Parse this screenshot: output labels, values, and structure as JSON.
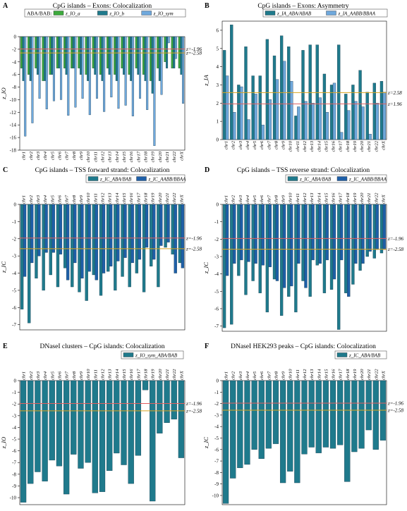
{
  "chromosomes": [
    "chr1",
    "chr2",
    "chr3",
    "chr4",
    "chr5",
    "chr6",
    "chr7",
    "chr8",
    "chr9",
    "chr10",
    "chr11",
    "chr12",
    "chr13",
    "chr14",
    "chr15",
    "chr16",
    "chr17",
    "chr18",
    "chr19",
    "chr20",
    "chr21",
    "chr22",
    "chrX"
  ],
  "colors": {
    "teal": "#1f7a8c",
    "darkblue": "#1e5fa8",
    "lightblue": "#6fa8dc",
    "green": "#3daa3d",
    "line_196": "#e06060",
    "line_258": "#d9a521"
  },
  "chart_data": [
    {
      "panel": "A",
      "type": "bar",
      "title": "CpG islands – Exons: Colocalization",
      "ylabel": "z_IO",
      "ylim": [
        -18,
        0
      ],
      "yticks": [
        0,
        -2,
        -4,
        -6,
        -8,
        -10,
        -12,
        -14,
        -16,
        -18
      ],
      "legend_title": "ABA/BAB:",
      "thresholds": [
        {
          "label": "z=-1.96",
          "value": -1.96
        },
        {
          "label": "z=-2.58",
          "value": -2.58
        }
      ],
      "series": [
        {
          "name": "z_IO_a",
          "color": "green",
          "values": [
            -5,
            -6,
            -5,
            -7,
            -6,
            -5,
            -5,
            -5,
            -5,
            -6,
            -5,
            -6,
            -5,
            -6,
            -5,
            -6,
            -5,
            -6,
            -7,
            -5,
            -4,
            -5,
            -5
          ]
        },
        {
          "name": "z_IO_b",
          "color": "teal",
          "values": [
            -7,
            -7,
            -6,
            -7,
            -6,
            -5,
            -6,
            -5,
            -6,
            -7,
            -6,
            -7,
            -6,
            -7,
            -6,
            -7,
            -6,
            -7,
            -9,
            -7,
            -5,
            -5,
            -6
          ]
        },
        {
          "name": "z_IO_sym",
          "color": "lightblue",
          "values": [
            -15.8,
            -13.7,
            -9.8,
            -11.5,
            -10.2,
            -10,
            -12.5,
            -11.2,
            -9.8,
            -12.4,
            -9.8,
            -11.9,
            -9.6,
            -11.4,
            -10.9,
            -12.6,
            -9.8,
            -11.6,
            -17.3,
            -9.2,
            -1,
            -3.5,
            -10.6
          ]
        }
      ]
    },
    {
      "panel": "B",
      "type": "bar",
      "title": "CpG islands – Exons: Asymmetry",
      "ylabel": "z_IA",
      "ylim": [
        0,
        6.5
      ],
      "yticks": [
        0,
        1,
        2,
        3,
        4,
        5,
        6
      ],
      "thresholds": [
        {
          "label": "z=2.58",
          "value": 2.58
        },
        {
          "label": "z=1.96",
          "value": 1.96
        }
      ],
      "series": [
        {
          "name": "z_IA_ABA/ABAB",
          "color": "teal",
          "values": [
            4.9,
            6.3,
            3,
            5.1,
            3.5,
            3.5,
            5.5,
            4.6,
            5.7,
            5.1,
            1.3,
            4.9,
            5.2,
            5.2,
            3.6,
            3,
            5.2,
            2.5,
            3,
            3.8,
            2.6,
            3.1,
            3.2
          ]
        },
        {
          "name": "z_IA_AABB/BBAA",
          "color": "lightblue",
          "values": [
            3.5,
            1.5,
            2.9,
            1.1,
            2.5,
            0.8,
            2.2,
            3.3,
            4.3,
            3.2,
            1.8,
            2.1,
            2,
            2.3,
            1.5,
            3.1,
            0.4,
            1.6,
            2.1,
            1.8,
            0.3,
            2,
            2.6
          ]
        }
      ]
    },
    {
      "panel": "C",
      "type": "bar",
      "title": "CpG islands – TSS forward strand: Colocalization",
      "ylabel": "z_IC",
      "ylim": [
        -7.3,
        0
      ],
      "yticks": [
        0,
        -1,
        -2,
        -3,
        -4,
        -5,
        -6,
        -7
      ],
      "thresholds": [
        {
          "label": "z=-1.96",
          "value": -1.96
        },
        {
          "label": "z=-2.58",
          "value": -2.58
        }
      ],
      "series": [
        {
          "name": "z_IC_ABA/BAB",
          "color": "teal",
          "values": [
            -6.1,
            -6.9,
            -4.3,
            -5,
            -4.1,
            -4.8,
            -3.7,
            -4.8,
            -5.1,
            -5.6,
            -4.1,
            -5.3,
            -3.9,
            -5,
            -4.2,
            -4.8,
            -4,
            -5.1,
            -3.6,
            -4.8,
            -2.5,
            -2.9,
            -3.4
          ]
        },
        {
          "name": "z_IC_AABB/BBAA",
          "color": "darkblue",
          "values": [
            -4.2,
            -3.4,
            -3,
            -2.8,
            -2.8,
            -2.9,
            -4.4,
            -3.4,
            -4.3,
            -3.9,
            -4.4,
            -4,
            -3.6,
            -3.3,
            -3.1,
            -3.4,
            -3.2,
            -2.5,
            -3.2,
            -2.4,
            -2.2,
            -4,
            -3.7
          ]
        }
      ]
    },
    {
      "panel": "D",
      "type": "bar",
      "title": "CpG islands – TSS reverse strand: Colocalization",
      "ylabel": "z_IC",
      "ylim": [
        -7.3,
        0
      ],
      "yticks": [
        0,
        -1,
        -2,
        -3,
        -4,
        -5,
        -6,
        -7
      ],
      "thresholds": [
        {
          "label": "z=-1.96",
          "value": -1.96
        },
        {
          "label": "z=-2.58",
          "value": -2.58
        }
      ],
      "series": [
        {
          "name": "z_IC_ABA/BAB",
          "color": "teal",
          "values": [
            -7.1,
            -6.9,
            -4.1,
            -5.2,
            -4.4,
            -5.1,
            -6.2,
            -4.3,
            -6.4,
            -5.3,
            -6.2,
            -4.4,
            -5.3,
            -3.5,
            -5.1,
            -4.9,
            -7.2,
            -5.1,
            -4.6,
            -3.8,
            -3,
            -3.1,
            -2.8
          ]
        },
        {
          "name": "z_IC_AABB/BBAA",
          "color": "darkblue",
          "values": [
            -4.1,
            -3.4,
            -3.2,
            -3.3,
            -3.4,
            -3.5,
            -3.6,
            -4.4,
            -4.8,
            -4.7,
            -3.4,
            -4.8,
            -3.2,
            -3.4,
            -3.2,
            -4.3,
            -3.2,
            -5.3,
            -3.4,
            -3.4,
            -2.7,
            -2.6,
            -2.6
          ]
        }
      ]
    },
    {
      "panel": "E",
      "type": "bar",
      "title": "DNaseI clusters – CpG islands: Colocalization",
      "ylabel": "z_IO",
      "ylim": [
        -10.6,
        0
      ],
      "yticks": [
        0,
        -1,
        -2,
        -3,
        -4,
        -5,
        -6,
        -7,
        -8,
        -9,
        -10
      ],
      "thresholds": [
        {
          "label": "z=-1.96",
          "value": -1.96
        },
        {
          "label": "z=-2.58",
          "value": -2.58
        }
      ],
      "series": [
        {
          "name": "z_IO_sym_ABA/BAB",
          "color": "teal",
          "values": [
            -10.4,
            -8.8,
            -7.8,
            -8.6,
            -6.8,
            -7.3,
            -9.7,
            -6.3,
            -7.5,
            -7,
            -9.6,
            -9.5,
            -7.7,
            -6.2,
            -7.2,
            -8.8,
            -6.4,
            -0.8,
            -10.3,
            -4.5,
            -3.6,
            -3.3,
            -6.6
          ]
        }
      ]
    },
    {
      "panel": "F",
      "type": "bar",
      "title": "DNaseI HEK293 peaks – CpG islands: Colocalization",
      "ylabel": "z_IC",
      "ylim": [
        -10.8,
        0
      ],
      "yticks": [
        0,
        -1,
        -2,
        -3,
        -4,
        -5,
        -6,
        -7,
        -8,
        -9,
        -10
      ],
      "thresholds": [
        {
          "label": "z=-1.96",
          "value": -1.96
        },
        {
          "label": "z=-2.58",
          "value": -2.58
        }
      ],
      "series": [
        {
          "name": "z_IC_ABA/BAB",
          "color": "teal",
          "values": [
            -10.7,
            -8.5,
            -7.6,
            -7.3,
            -6,
            -6.8,
            -5.9,
            -5.5,
            -8.9,
            -7.9,
            -8.9,
            -6.4,
            -5.8,
            -6.3,
            -5.8,
            -5.9,
            -5.6,
            -8.8,
            -6.2,
            -5.9,
            -4.3,
            -6,
            -5.2
          ]
        }
      ]
    }
  ]
}
